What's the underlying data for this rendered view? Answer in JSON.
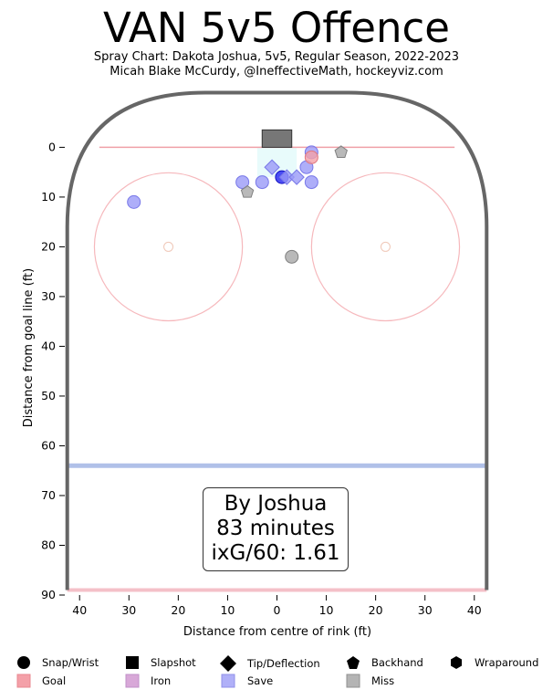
{
  "header": {
    "title": "VAN 5v5 Offence",
    "subtitle_line1": "Spray Chart: Dakota Joshua, 5v5, Regular Season, 2022-2023",
    "subtitle_line2": "Micah Blake McCurdy, @IneffectiveMath, hockeyviz.com"
  },
  "annotation": {
    "line1": "By Joshua",
    "line2": "83 minutes",
    "line3": "ixG/60: 1.61"
  },
  "chart_data": {
    "type": "scatter",
    "xlabel": "Distance from centre of rink (ft)",
    "ylabel": "Distance from goal line (ft)",
    "xlim": [
      -43,
      43
    ],
    "ylim": [
      90,
      -12
    ],
    "xticks": [
      -40,
      -30,
      -20,
      -10,
      0,
      10,
      20,
      30,
      40
    ],
    "xtick_labels": [
      "40",
      "30",
      "20",
      "10",
      "0",
      "10",
      "20",
      "30",
      "40"
    ],
    "yticks": [
      0,
      10,
      20,
      30,
      40,
      50,
      60,
      70,
      80,
      90
    ],
    "ytick_labels": [
      "0",
      "10",
      "20",
      "30",
      "40",
      "50",
      "60",
      "70",
      "80",
      "90"
    ],
    "grid": false,
    "colors": {
      "goal": "#f4a0a8",
      "iron": "#d8a8d8",
      "save": "#9a9af8",
      "miss": "#a8a8a8",
      "save_dark": "#2020f0",
      "rink": "#666666",
      "goal_line": "#f0a0a8",
      "blue_line": "#b0c0e8"
    },
    "shots": [
      {
        "x": -29,
        "y": 11,
        "shape": "circle",
        "result": "save"
      },
      {
        "x": -7,
        "y": 7,
        "shape": "circle",
        "result": "save"
      },
      {
        "x": -3,
        "y": 7,
        "shape": "circle",
        "result": "save"
      },
      {
        "x": 1,
        "y": 6,
        "shape": "circle",
        "result": "save_dark"
      },
      {
        "x": 6,
        "y": 4,
        "shape": "circle",
        "result": "save"
      },
      {
        "x": 7,
        "y": 1,
        "shape": "circle",
        "result": "save"
      },
      {
        "x": 7,
        "y": 2,
        "shape": "circle",
        "result": "goal"
      },
      {
        "x": 7,
        "y": 7,
        "shape": "circle",
        "result": "save"
      },
      {
        "x": 3,
        "y": 22,
        "shape": "circle",
        "result": "miss"
      },
      {
        "x": -1,
        "y": 4,
        "shape": "diamond",
        "result": "save"
      },
      {
        "x": 2,
        "y": 6,
        "shape": "diamond",
        "result": "save"
      },
      {
        "x": 4,
        "y": 6,
        "shape": "diamond",
        "result": "save"
      },
      {
        "x": -6,
        "y": 9,
        "shape": "pentagon",
        "result": "miss"
      },
      {
        "x": 13,
        "y": 1,
        "shape": "pentagon",
        "result": "miss"
      }
    ],
    "legend_shapes": [
      "Snap/Wrist",
      "Slapshot",
      "Tip/Deflection",
      "Backhand",
      "Wraparound"
    ],
    "legend_results": [
      "Goal",
      "Iron",
      "Save",
      "Miss"
    ]
  }
}
